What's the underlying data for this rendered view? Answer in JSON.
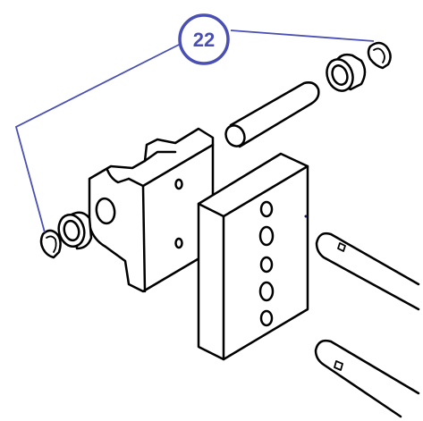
{
  "diagram": {
    "callout": {
      "label": "22",
      "color": "#4a4fb3"
    },
    "line_color": "#000000",
    "background": "#ffffff"
  }
}
